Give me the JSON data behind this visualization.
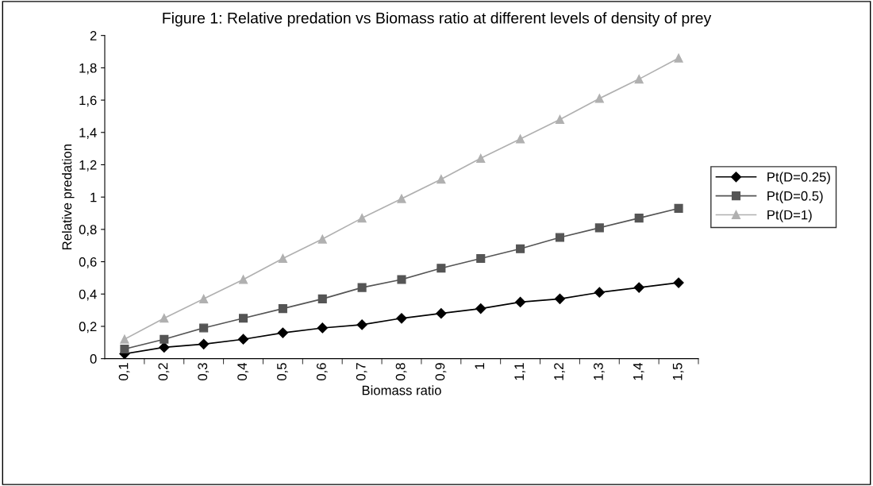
{
  "chart_data": {
    "type": "line",
    "title": "Figure 1: Relative predation vs Biomass ratio at different levels of density of prey",
    "xlabel": "Biomass ratio",
    "ylabel": "Relative predation",
    "categories": [
      "0,1",
      "0,2",
      "0,3",
      "0,4",
      "0,5",
      "0,6",
      "0,7",
      "0,8",
      "0,9",
      "1",
      "1,1",
      "1,2",
      "1,3",
      "1,4",
      "1,5"
    ],
    "series": [
      {
        "name": "Pt(D=0.25)",
        "color": "#000000",
        "marker": "diamond",
        "values": [
          0.03,
          0.07,
          0.09,
          0.12,
          0.16,
          0.19,
          0.21,
          0.25,
          0.28,
          0.31,
          0.35,
          0.37,
          0.41,
          0.44,
          0.47
        ]
      },
      {
        "name": "Pt(D=0.5)",
        "color": "#555555",
        "marker": "square",
        "values": [
          0.06,
          0.12,
          0.19,
          0.25,
          0.31,
          0.37,
          0.44,
          0.49,
          0.56,
          0.62,
          0.68,
          0.75,
          0.81,
          0.87,
          0.93
        ]
      },
      {
        "name": "Pt(D=1)",
        "color": "#b0b0b0",
        "marker": "triangle",
        "values": [
          0.12,
          0.25,
          0.37,
          0.49,
          0.62,
          0.74,
          0.87,
          0.99,
          1.11,
          1.24,
          1.36,
          1.48,
          1.61,
          1.73,
          1.86
        ]
      }
    ],
    "ylim": [
      0,
      2
    ],
    "yticks": [
      0,
      {
        "value": 0.2,
        "label": "0,2"
      },
      {
        "value": 0.4,
        "label": "0,4"
      },
      {
        "value": 0.6,
        "label": "0,6"
      },
      {
        "value": 0.8,
        "label": "0,8"
      },
      1,
      {
        "value": 1.2,
        "label": "1,2"
      },
      {
        "value": 1.4,
        "label": "1,4"
      },
      {
        "value": 1.6,
        "label": "1,6"
      },
      {
        "value": 1.8,
        "label": "1,8"
      },
      2
    ],
    "grid": false,
    "legend": "right",
    "line_style": "solid"
  }
}
